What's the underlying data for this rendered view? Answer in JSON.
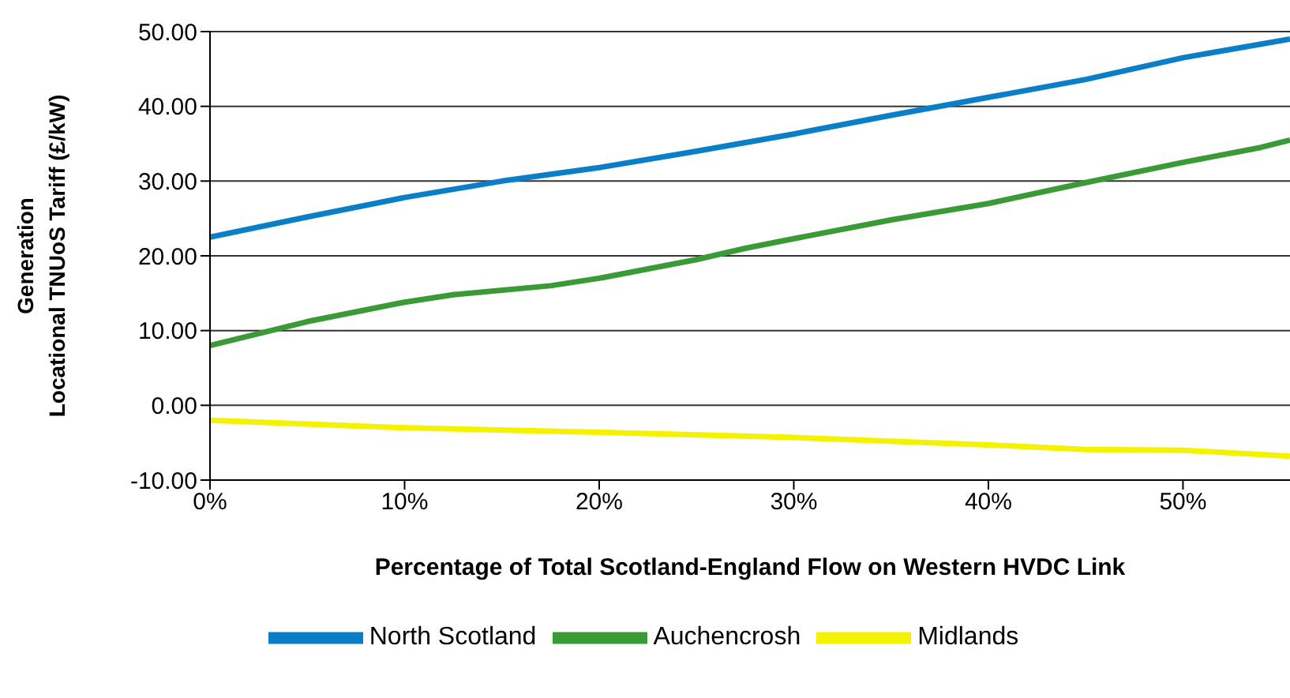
{
  "chart_data": {
    "type": "line",
    "xlabel": "Percentage of Total Scotland-England Flow on Western HVDC Link",
    "ylabel": "Generation\nLocational TNUoS  Tariff (£/kW)",
    "xlim": [
      0,
      55.5
    ],
    "xticks": [
      {
        "value": 0,
        "label": "0%"
      },
      {
        "value": 10,
        "label": "10%"
      },
      {
        "value": 20,
        "label": "20%"
      },
      {
        "value": 30,
        "label": "30%"
      },
      {
        "value": 40,
        "label": "40%"
      },
      {
        "value": 50,
        "label": "50%"
      }
    ],
    "ylim": [
      -10,
      50
    ],
    "yticks": [
      {
        "value": -10,
        "label": "-10.00"
      },
      {
        "value": 0,
        "label": "0.00"
      },
      {
        "value": 10,
        "label": "10.00"
      },
      {
        "value": 20,
        "label": "20.00"
      },
      {
        "value": 30,
        "label": "30.00"
      },
      {
        "value": 40,
        "label": "40.00"
      },
      {
        "value": 50,
        "label": "50.00"
      }
    ],
    "grid": "y",
    "legend": "bottom",
    "marker": "none",
    "series": [
      {
        "name": "North Scotland",
        "color": "#0a7fc7",
        "x": [
          0,
          5,
          10,
          15,
          20,
          25,
          30,
          35,
          40,
          45,
          50,
          55.5
        ],
        "values": [
          22.5,
          25.2,
          27.8,
          30,
          31.8,
          34,
          36.3,
          38.8,
          41.2,
          43.6,
          46.5,
          49
        ]
      },
      {
        "name": "Auchencrosh",
        "color": "#3a9a35",
        "x": [
          0,
          5,
          10,
          12.5,
          17.5,
          20,
          25,
          27.5,
          30,
          35,
          40,
          45,
          50,
          54,
          55.5
        ],
        "values": [
          8,
          11.2,
          13.8,
          14.8,
          16,
          17,
          19.5,
          21,
          22.3,
          24.8,
          27,
          29.8,
          32.5,
          34.5,
          35.5
        ]
      },
      {
        "name": "Midlands",
        "color": "#f5f200",
        "x": [
          0,
          10,
          20,
          30,
          40,
          45,
          50,
          55.5
        ],
        "values": [
          -2,
          -3,
          -3.6,
          -4.3,
          -5.3,
          -5.9,
          -6,
          -6.8
        ]
      }
    ]
  }
}
